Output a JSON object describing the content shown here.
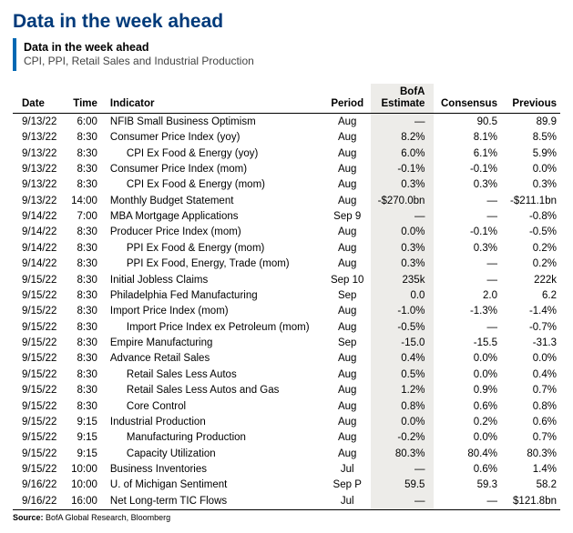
{
  "title": "Data in the week ahead",
  "subtitle1": "Data in the week ahead",
  "subtitle2": "CPI, PPI, Retail Sales and Industrial Production",
  "headers": {
    "date": "Date",
    "time": "Time",
    "indicator": "Indicator",
    "period": "Period",
    "estimate": "BofA\nEstimate",
    "consensus": "Consensus",
    "previous": "Previous"
  },
  "rows": [
    {
      "date": "9/13/22",
      "time": "6:00",
      "indicator": "NFIB Small Business Optimism",
      "indent": 0,
      "period": "Aug",
      "est": "—",
      "cons": "90.5",
      "prev": "89.9"
    },
    {
      "date": "9/13/22",
      "time": "8:30",
      "indicator": "Consumer Price Index (yoy)",
      "indent": 0,
      "period": "Aug",
      "est": "8.2%",
      "cons": "8.1%",
      "prev": "8.5%"
    },
    {
      "date": "9/13/22",
      "time": "8:30",
      "indicator": "CPI Ex Food & Energy (yoy)",
      "indent": 1,
      "period": "Aug",
      "est": "6.0%",
      "cons": "6.1%",
      "prev": "5.9%"
    },
    {
      "date": "9/13/22",
      "time": "8:30",
      "indicator": "Consumer Price Index (mom)",
      "indent": 0,
      "period": "Aug",
      "est": "-0.1%",
      "cons": "-0.1%",
      "prev": "0.0%"
    },
    {
      "date": "9/13/22",
      "time": "8:30",
      "indicator": "CPI Ex Food & Energy (mom)",
      "indent": 1,
      "period": "Aug",
      "est": "0.3%",
      "cons": "0.3%",
      "prev": "0.3%"
    },
    {
      "date": "9/13/22",
      "time": "14:00",
      "indicator": "Monthly Budget Statement",
      "indent": 0,
      "period": "Aug",
      "est": "-$270.0bn",
      "cons": "—",
      "prev": "-$211.1bn"
    },
    {
      "date": "9/14/22",
      "time": "7:00",
      "indicator": "MBA Mortgage Applications",
      "indent": 0,
      "period": "Sep 9",
      "est": "—",
      "cons": "—",
      "prev": "-0.8%"
    },
    {
      "date": "9/14/22",
      "time": "8:30",
      "indicator": "Producer Price Index (mom)",
      "indent": 0,
      "period": "Aug",
      "est": "0.0%",
      "cons": "-0.1%",
      "prev": "-0.5%"
    },
    {
      "date": "9/14/22",
      "time": "8:30",
      "indicator": "PPI Ex Food & Energy (mom)",
      "indent": 1,
      "period": "Aug",
      "est": "0.3%",
      "cons": "0.3%",
      "prev": "0.2%"
    },
    {
      "date": "9/14/22",
      "time": "8:30",
      "indicator": "PPI Ex Food, Energy, Trade (mom)",
      "indent": 1,
      "period": "Aug",
      "est": "0.3%",
      "cons": "—",
      "prev": "0.2%"
    },
    {
      "date": "9/15/22",
      "time": "8:30",
      "indicator": "Initial Jobless Claims",
      "indent": 0,
      "period": "Sep 10",
      "est": "235k",
      "cons": "—",
      "prev": "222k"
    },
    {
      "date": "9/15/22",
      "time": "8:30",
      "indicator": "Philadelphia Fed Manufacturing",
      "indent": 0,
      "period": "Sep",
      "est": "0.0",
      "cons": "2.0",
      "prev": "6.2"
    },
    {
      "date": "9/15/22",
      "time": "8:30",
      "indicator": "Import Price Index (mom)",
      "indent": 0,
      "period": "Aug",
      "est": "-1.0%",
      "cons": "-1.3%",
      "prev": "-1.4%"
    },
    {
      "date": "9/15/22",
      "time": "8:30",
      "indicator": "Import Price Index ex Petroleum (mom)",
      "indent": 1,
      "period": "Aug",
      "est": "-0.5%",
      "cons": "—",
      "prev": "-0.7%"
    },
    {
      "date": "9/15/22",
      "time": "8:30",
      "indicator": "Empire Manufacturing",
      "indent": 0,
      "period": "Sep",
      "est": "-15.0",
      "cons": "-15.5",
      "prev": "-31.3"
    },
    {
      "date": "9/15/22",
      "time": "8:30",
      "indicator": "Advance Retail Sales",
      "indent": 0,
      "period": "Aug",
      "est": "0.4%",
      "cons": "0.0%",
      "prev": "0.0%"
    },
    {
      "date": "9/15/22",
      "time": "8:30",
      "indicator": "Retail Sales Less Autos",
      "indent": 1,
      "period": "Aug",
      "est": "0.5%",
      "cons": "0.0%",
      "prev": "0.4%"
    },
    {
      "date": "9/15/22",
      "time": "8:30",
      "indicator": "Retail Sales Less Autos and Gas",
      "indent": 1,
      "period": "Aug",
      "est": "1.2%",
      "cons": "0.9%",
      "prev": "0.7%"
    },
    {
      "date": "9/15/22",
      "time": "8:30",
      "indicator": "Core Control",
      "indent": 1,
      "period": "Aug",
      "est": "0.8%",
      "cons": "0.6%",
      "prev": "0.8%"
    },
    {
      "date": "9/15/22",
      "time": "9:15",
      "indicator": "Industrial Production",
      "indent": 0,
      "period": "Aug",
      "est": "0.0%",
      "cons": "0.2%",
      "prev": "0.6%"
    },
    {
      "date": "9/15/22",
      "time": "9:15",
      "indicator": "Manufacturing Production",
      "indent": 1,
      "period": "Aug",
      "est": "-0.2%",
      "cons": "0.0%",
      "prev": "0.7%"
    },
    {
      "date": "9/15/22",
      "time": "9:15",
      "indicator": "Capacity Utilization",
      "indent": 1,
      "period": "Aug",
      "est": "80.3%",
      "cons": "80.4%",
      "prev": "80.3%"
    },
    {
      "date": "9/15/22",
      "time": "10:00",
      "indicator": "Business Inventories",
      "indent": 0,
      "period": "Jul",
      "est": "—",
      "cons": "0.6%",
      "prev": "1.4%"
    },
    {
      "date": "9/16/22",
      "time": "10:00",
      "indicator": "U. of Michigan Sentiment",
      "indent": 0,
      "period": "Sep P",
      "est": "59.5",
      "cons": "59.3",
      "prev": "58.2"
    },
    {
      "date": "9/16/22",
      "time": "16:00",
      "indicator": "Net Long-term TIC Flows",
      "indent": 0,
      "period": "Jul",
      "est": "—",
      "cons": "—",
      "prev": "$121.8bn"
    }
  ],
  "source_label": "Source:",
  "source_text": "BofA Global Research, Bloomberg",
  "colors": {
    "title": "#003a7a",
    "accent_bar": "#0068b3",
    "est_bg": "#edece9",
    "text": "#000000"
  }
}
